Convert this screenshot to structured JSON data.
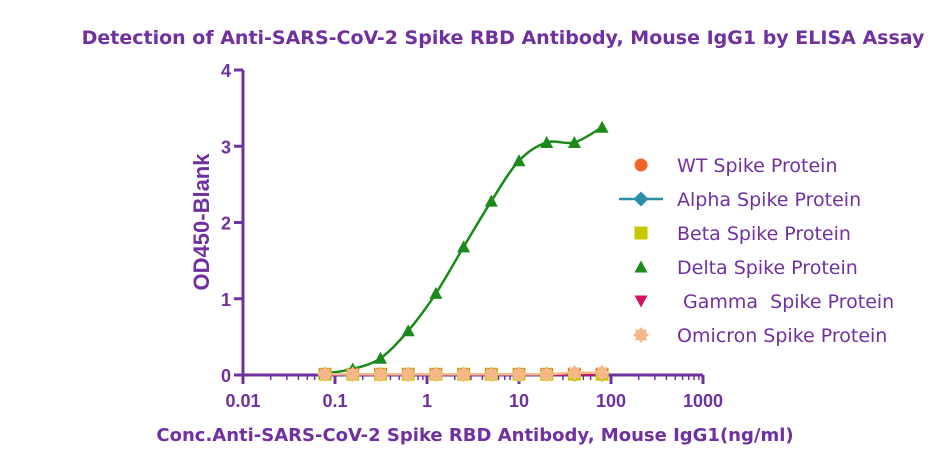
{
  "chart_data": {
    "type": "scatter",
    "title": "Detection of Anti-SARS-CoV-2 Spike RBD Antibody, Mouse IgG1 by ELISA Assay",
    "xlabel": "Conc.Anti-SARS-CoV-2 Spike RBD Antibody, Mouse IgG1(ng/ml)",
    "ylabel": "OD450-Blank",
    "xscale": "log",
    "xlim": [
      0.01,
      1000
    ],
    "ylim": [
      0,
      4
    ],
    "xticks": [
      "0.01",
      "0.1",
      "1",
      "10",
      "100",
      "1000"
    ],
    "yticks": [
      "0",
      "1",
      "2",
      "3",
      "4"
    ],
    "legend_position": "right",
    "axis_color": "#7030a0",
    "x": [
      0.078,
      0.156,
      0.3125,
      0.625,
      1.25,
      2.5,
      5,
      10,
      20,
      40,
      80
    ],
    "series": [
      {
        "name": "WT Spike Protein",
        "marker": "circle",
        "color": "#f26522",
        "values": [
          0.01,
          0.01,
          0.01,
          0.01,
          0.01,
          0.01,
          0.01,
          0.01,
          0.01,
          0.01,
          0.01
        ]
      },
      {
        "name": "Alpha Spike Protein",
        "marker": "diamond",
        "color": "#2a8fa5",
        "values": [
          0.01,
          0.01,
          0.01,
          0.01,
          0.01,
          0.01,
          0.01,
          0.01,
          0.01,
          0.01,
          0.01
        ]
      },
      {
        "name": "Beta Spike Protein",
        "marker": "square",
        "color": "#c8c800",
        "values": [
          0.01,
          0.01,
          0.01,
          0.01,
          0.01,
          0.01,
          0.01,
          0.01,
          0.01,
          0.01,
          0.01
        ]
      },
      {
        "name": "Delta Spike Protein",
        "marker": "triangle-up",
        "color": "#1a8a1a",
        "values": [
          0.02,
          0.08,
          0.22,
          0.58,
          1.07,
          1.68,
          2.28,
          2.81,
          3.05,
          3.05,
          3.25
        ],
        "fit_curve": true
      },
      {
        "name": " Gamma  Spike Protein",
        "marker": "triangle-down",
        "color": "#d6105e",
        "values": [
          0.01,
          0.01,
          0.01,
          0.01,
          0.01,
          0.01,
          0.01,
          0.01,
          0.01,
          0.01,
          0.01
        ]
      },
      {
        "name": "Omicron Spike Protein",
        "marker": "star",
        "color": "#f7b889",
        "values": [
          0.01,
          0.01,
          0.01,
          0.01,
          0.01,
          0.01,
          0.01,
          0.01,
          0.01,
          0.03,
          0.03
        ]
      }
    ]
  }
}
